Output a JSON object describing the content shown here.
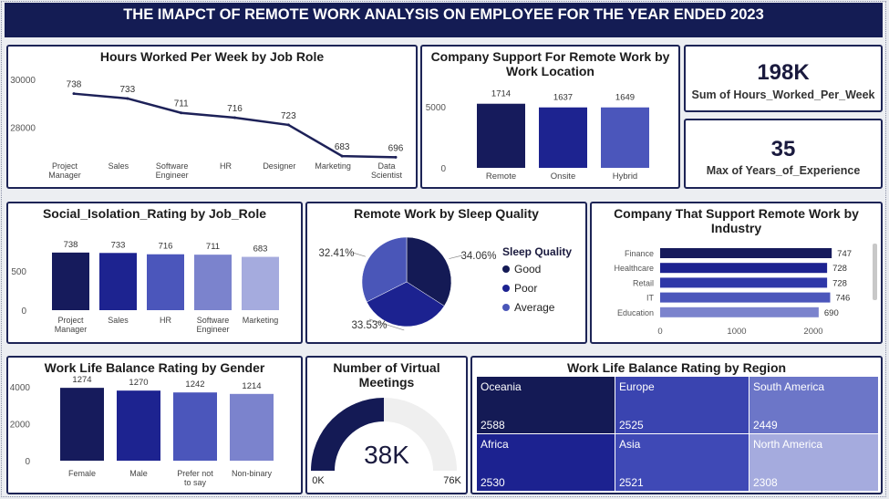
{
  "dashboard": {
    "title": "THE IMAPCT OF REMOTE WORK ANALYSIS ON EMPLOYEE FOR THE YEAR ENDED 2023"
  },
  "cards": {
    "hours": {
      "value": "198K",
      "label": "Sum of Hours_Worked_Per_Week"
    },
    "experience": {
      "value": "35",
      "label": "Max of Years_of_Experience"
    }
  },
  "legend_sleep": {
    "title": "Sleep Quality",
    "items": [
      "Good",
      "Poor",
      "Average"
    ],
    "colors": [
      "#141a55",
      "#1c2290",
      "#4a56b8"
    ]
  },
  "gauge": {
    "value_label": "38K",
    "min_label": "0K",
    "max_label": "76K"
  },
  "chart_data": [
    {
      "id": "hours_line",
      "type": "line",
      "title": "Hours Worked Per Week by Job Role",
      "categories": [
        "Project Manager",
        "Sales",
        "Software Engineer",
        "HR",
        "Designer",
        "Marketing",
        "Data Scientist"
      ],
      "values": [
        738,
        733,
        711,
        716,
        723,
        683,
        696
      ],
      "y_positions": [
        29400,
        29200,
        28600,
        28400,
        28100,
        26800,
        26750
      ],
      "y_ticks": [
        "30000",
        "28000"
      ],
      "ylim": [
        26500,
        30300
      ],
      "color": "#1d2158"
    },
    {
      "id": "support_location",
      "type": "bar",
      "title": "Company Support For Remote Work by Work Location",
      "categories": [
        "Remote",
        "Onsite",
        "Hybrid"
      ],
      "values": [
        1714,
        1637,
        1649
      ],
      "heights": [
        5250,
        4950,
        4950
      ],
      "y_ticks": [
        "5000",
        "0"
      ],
      "ylim": [
        0,
        6200
      ],
      "colors": [
        "#161b5c",
        "#1d2390",
        "#4b56bb"
      ]
    },
    {
      "id": "isolation",
      "type": "bar",
      "title": "Social_Isolation_Rating by Job_Role",
      "categories": [
        "Project Manager",
        "Sales",
        "HR",
        "Software Engineer",
        "Marketing"
      ],
      "values": [
        738,
        733,
        716,
        711,
        683
      ],
      "y_ticks": [
        "500",
        "0"
      ],
      "ylim": [
        0,
        900
      ],
      "colors": [
        "#161b5c",
        "#1d2390",
        "#4b56bb",
        "#7b83cd",
        "#a5abde"
      ]
    },
    {
      "id": "sleep_pie",
      "type": "pie",
      "title": "Remote Work by Sleep Quality",
      "labels": [
        "Good",
        "Poor",
        "Average"
      ],
      "values": [
        34.06,
        33.53,
        32.41
      ],
      "value_labels": [
        "34.06%",
        "33.53%",
        "32.41%"
      ],
      "colors": [
        "#141a55",
        "#1c2290",
        "#4a56b8"
      ]
    },
    {
      "id": "industry",
      "type": "bar",
      "orientation": "horizontal",
      "title": "Company That Support Remote Work by Industry",
      "categories": [
        "Finance",
        "Healthcare",
        "Retail",
        "IT",
        "Education"
      ],
      "values": [
        747,
        728,
        728,
        746,
        690
      ],
      "lengths": [
        2240,
        2180,
        2180,
        2220,
        2070
      ],
      "x_ticks": [
        "0",
        "1000",
        "2000"
      ],
      "xlim": [
        0,
        2500
      ],
      "colors": [
        "#161b5c",
        "#1d2390",
        "#2e37a8",
        "#4b56bb",
        "#7b83cd"
      ]
    },
    {
      "id": "wlb_gender",
      "type": "bar",
      "title": "Work Life Balance Rating by Gender",
      "categories": [
        "Female",
        "Male",
        "Prefer not to say",
        "Non-binary"
      ],
      "values": [
        1274,
        1270,
        1242,
        1214
      ],
      "heights": [
        3950,
        3800,
        3700,
        3620
      ],
      "y_ticks": [
        "4000",
        "2000",
        "0"
      ],
      "ylim": [
        0,
        4600
      ],
      "colors": [
        "#161b5c",
        "#1d2390",
        "#4b56bb",
        "#7b83cd"
      ]
    },
    {
      "id": "meetings",
      "type": "gauge",
      "title": "Number of Virtual Meetings",
      "value": 38,
      "min": 0,
      "max": 76,
      "colors": [
        "#141a55",
        "#efefef"
      ]
    },
    {
      "id": "wlb_region",
      "type": "heatmap",
      "title": "Work Life Balance Rating by Region",
      "cells": [
        {
          "name": "Oceania",
          "value": "2588",
          "color": "#141a55"
        },
        {
          "name": "Europe",
          "value": "2525",
          "color": "#3a44b0"
        },
        {
          "name": "South America",
          "value": "2449",
          "color": "#6c76c8"
        },
        {
          "name": "Africa",
          "value": "2530",
          "color": "#1c2290"
        },
        {
          "name": "Asia",
          "value": "2521",
          "color": "#3f49b6"
        },
        {
          "name": "North America",
          "value": "2308",
          "color": "#a5abde"
        }
      ]
    }
  ]
}
